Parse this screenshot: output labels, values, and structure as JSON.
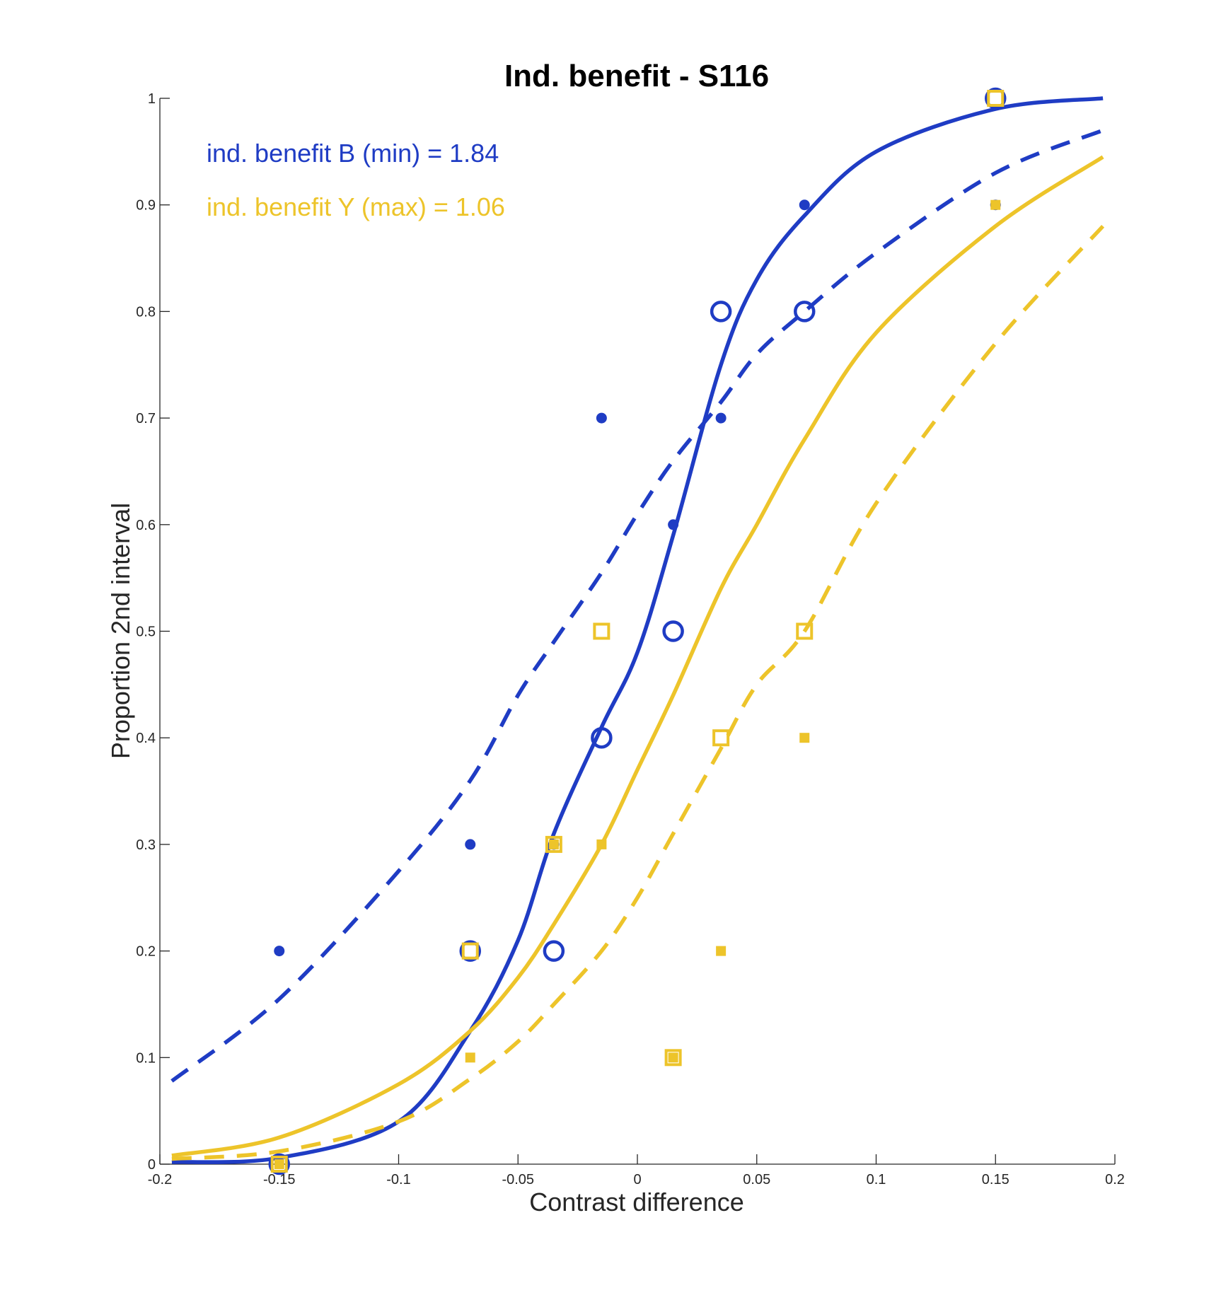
{
  "chart_data": {
    "type": "scatter",
    "title": "Ind. benefit - S116",
    "xlabel": "Contrast difference",
    "ylabel": "Proportion 2nd interval",
    "xlim": [
      -0.2,
      0.2
    ],
    "ylim": [
      0,
      1
    ],
    "grid": false,
    "x_ticks": [
      -0.2,
      -0.15,
      -0.1,
      -0.05,
      0,
      0.05,
      0.1,
      0.15,
      0.2
    ],
    "x_tick_labels": [
      "-0.2",
      "-0.15",
      "-0.1",
      "-0.05",
      "0",
      "0.05",
      "0.1",
      "0.15",
      "0.2"
    ],
    "y_ticks": [
      0,
      0.1,
      0.2,
      0.3,
      0.4,
      0.5,
      0.6,
      0.7,
      0.8,
      0.9,
      1
    ],
    "y_tick_labels": [
      "0",
      "0.1",
      "0.2",
      "0.3",
      "0.4",
      "0.5",
      "0.6",
      "0.7",
      "0.8",
      "0.9",
      "1"
    ],
    "annotations": [
      {
        "text": "ind. benefit B (min) = 1.84",
        "color": "#1f3cc4"
      },
      {
        "text": "ind. benefit Y (max) = 1.06",
        "color": "#edc42a"
      }
    ],
    "colors": {
      "blue": "#1f3cc4",
      "yellow": "#edc42a"
    },
    "series": [
      {
        "color": "#1f3cc4",
        "marker": "dot",
        "x": [
          -0.15,
          -0.07,
          -0.035,
          -0.015,
          0.015,
          0.035,
          0.07,
          0.15
        ],
        "y": [
          0.2,
          0.3,
          0.3,
          0.7,
          0.6,
          0.7,
          0.9,
          0.9
        ]
      },
      {
        "color": "#1f3cc4",
        "marker": "open-circle",
        "x": [
          -0.15,
          -0.07,
          -0.035,
          -0.015,
          0.015,
          0.035,
          0.07,
          0.15
        ],
        "y": [
          0.0,
          0.2,
          0.2,
          0.4,
          0.5,
          0.8,
          0.8,
          1.0
        ]
      },
      {
        "color": "#edc42a",
        "marker": "small-square",
        "x": [
          -0.15,
          -0.07,
          -0.035,
          -0.015,
          0.015,
          0.035,
          0.07,
          0.15
        ],
        "y": [
          0.0,
          0.1,
          0.3,
          0.3,
          0.1,
          0.2,
          0.4,
          0.9
        ]
      },
      {
        "color": "#edc42a",
        "marker": "open-square",
        "x": [
          -0.15,
          -0.07,
          -0.035,
          -0.015,
          0.015,
          0.035,
          0.07,
          0.15
        ],
        "y": [
          0.0,
          0.2,
          0.3,
          0.5,
          0.1,
          0.4,
          0.5,
          1.0
        ]
      }
    ],
    "curves": [
      {
        "color": "#1f3cc4",
        "style": "solid",
        "x_range": [
          -0.195,
          0.195
        ],
        "x": [
          -0.195,
          -0.15,
          -0.1,
          -0.07,
          -0.05,
          -0.035,
          -0.015,
          0,
          0.015,
          0.035,
          0.05,
          0.07,
          0.1,
          0.15,
          0.195
        ],
        "y": [
          0.002,
          0.006,
          0.04,
          0.125,
          0.21,
          0.31,
          0.41,
          0.48,
          0.59,
          0.75,
          0.83,
          0.89,
          0.95,
          0.99,
          1.0
        ]
      },
      {
        "color": "#1f3cc4",
        "style": "dashed",
        "x_range": [
          -0.195,
          0.195
        ],
        "x": [
          -0.195,
          -0.15,
          -0.1,
          -0.07,
          -0.05,
          -0.035,
          -0.015,
          0,
          0.015,
          0.035,
          0.05,
          0.07,
          0.1,
          0.15,
          0.195
        ],
        "y": [
          0.078,
          0.155,
          0.275,
          0.36,
          0.44,
          0.49,
          0.555,
          0.61,
          0.66,
          0.715,
          0.76,
          0.8,
          0.855,
          0.93,
          0.97
        ]
      },
      {
        "color": "#edc42a",
        "style": "solid",
        "x_range": [
          -0.195,
          0.195
        ],
        "x": [
          -0.195,
          -0.15,
          -0.1,
          -0.07,
          -0.05,
          -0.035,
          -0.015,
          0,
          0.015,
          0.035,
          0.05,
          0.07,
          0.1,
          0.15,
          0.195
        ],
        "y": [
          0.008,
          0.025,
          0.075,
          0.125,
          0.175,
          0.225,
          0.3,
          0.37,
          0.44,
          0.54,
          0.6,
          0.68,
          0.78,
          0.88,
          0.945
        ]
      },
      {
        "color": "#edc42a",
        "style": "dashed",
        "x_range": [
          -0.195,
          0.195
        ],
        "x": [
          -0.195,
          -0.15,
          -0.1,
          -0.07,
          -0.05,
          -0.035,
          -0.015,
          0,
          0.015,
          0.035,
          0.05,
          0.07,
          0.1,
          0.15,
          0.195
        ],
        "y": [
          0.005,
          0.012,
          0.04,
          0.08,
          0.115,
          0.15,
          0.2,
          0.25,
          0.31,
          0.39,
          0.45,
          0.5,
          0.62,
          0.77,
          0.88
        ]
      }
    ]
  }
}
